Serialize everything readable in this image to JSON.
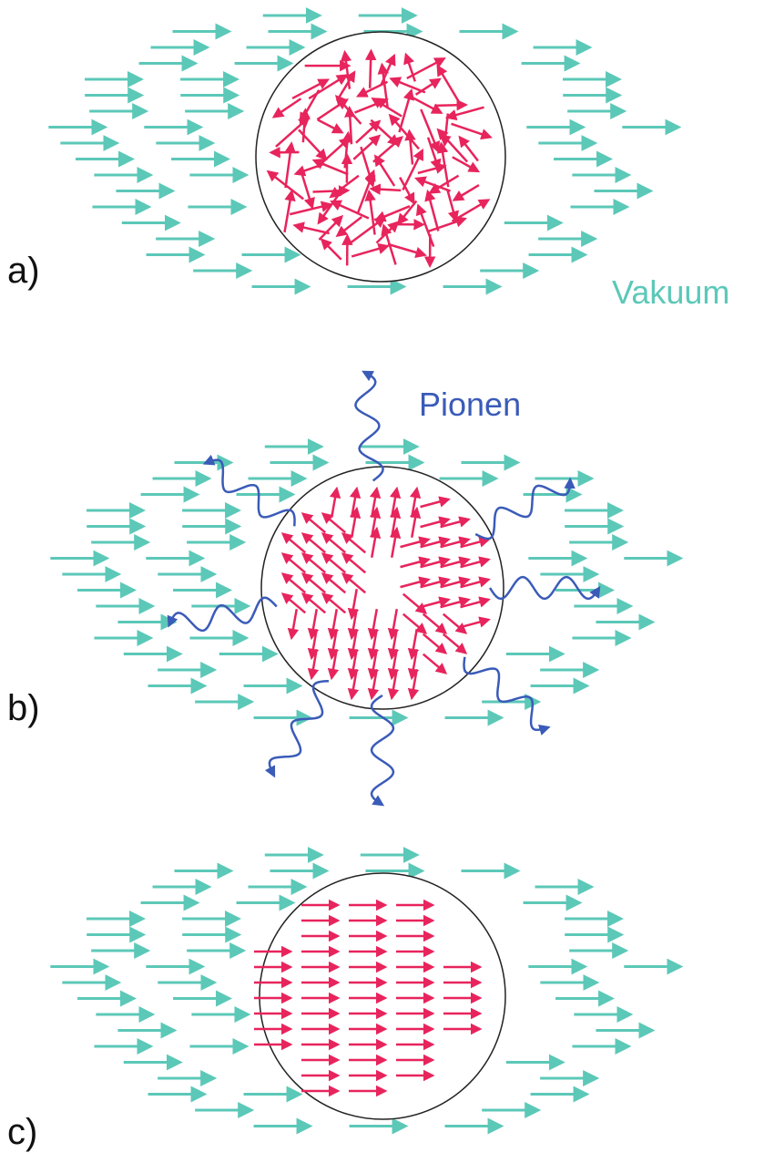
{
  "panels": [
    {
      "label": "a)",
      "annotation": "Vakuum"
    },
    {
      "label": "b)",
      "annotation": "Pionen"
    },
    {
      "label": "c)"
    }
  ]
}
